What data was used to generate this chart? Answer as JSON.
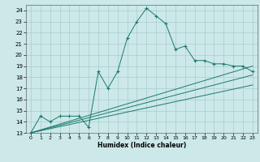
{
  "xlabel": "Humidex (Indice chaleur)",
  "xlim": [
    -0.5,
    23.5
  ],
  "ylim": [
    13,
    24.5
  ],
  "yticks": [
    13,
    14,
    15,
    16,
    17,
    18,
    19,
    20,
    21,
    22,
    23,
    24
  ],
  "xticks": [
    0,
    1,
    2,
    3,
    4,
    5,
    6,
    7,
    8,
    9,
    10,
    11,
    12,
    13,
    14,
    15,
    16,
    17,
    18,
    19,
    20,
    21,
    22,
    23
  ],
  "bg_color": "#cce8e8",
  "grid_color": "#aacccc",
  "line_color": "#1a7a6e",
  "main_x": [
    0,
    1,
    2,
    3,
    4,
    5,
    6,
    7,
    8,
    9,
    10,
    11,
    12,
    13,
    14,
    15,
    16,
    17,
    18,
    19,
    20,
    21,
    22,
    23
  ],
  "main_y": [
    13,
    14.5,
    14,
    14.5,
    14.5,
    14.5,
    13.5,
    18.5,
    17.0,
    18.5,
    21.5,
    23.0,
    24.2,
    23.5,
    22.8,
    20.5,
    20.8,
    19.5,
    19.5,
    19.2,
    19.2,
    19.0,
    19.0,
    18.5
  ],
  "line2_x": [
    0,
    23
  ],
  "line2_y": [
    13,
    19.0
  ],
  "line3_x": [
    0,
    23
  ],
  "line3_y": [
    13,
    18.2
  ],
  "line4_x": [
    0,
    23
  ],
  "line4_y": [
    13,
    17.3
  ]
}
